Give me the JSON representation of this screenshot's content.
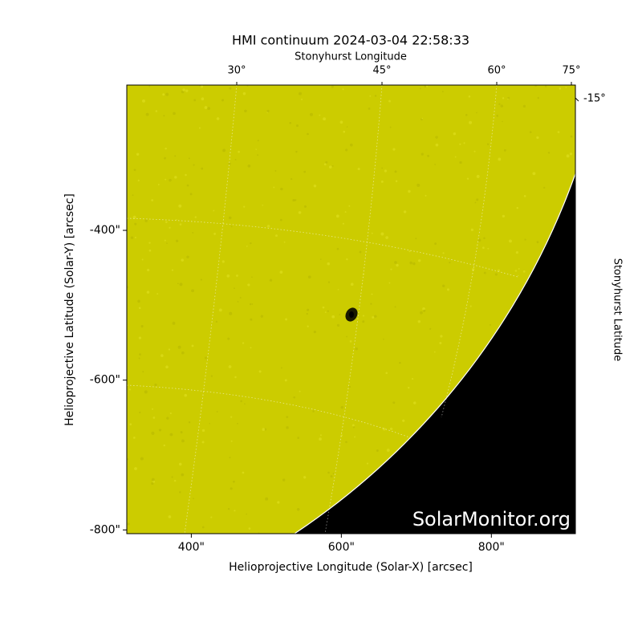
{
  "chart_data": {
    "type": "image",
    "title": "HMI continuum 2024-03-04 22:58:33",
    "xlabel": "Helioprojective Longitude (Solar-X) [arcsec]",
    "ylabel": "Helioprojective Latitude (Solar-Y) [arcsec]",
    "top_axis_label": "Stonyhurst Longitude",
    "right_axis_label": "Stonyhurst Latitude",
    "top_ticks": [
      "30°",
      "45°",
      "60°",
      "75°"
    ],
    "right_ticks": [
      "-15°"
    ],
    "watermark": "SolarMonitor.org",
    "xlim": [
      314,
      912
    ],
    "ylim": [
      -805,
      -206
    ],
    "xticks": [
      {
        "value": 400,
        "label": "400\""
      },
      {
        "value": 600,
        "label": "600\""
      },
      {
        "value": 800,
        "label": "800\""
      }
    ],
    "yticks": [
      {
        "value": -400,
        "label": "-400\""
      },
      {
        "value": -600,
        "label": "-600\""
      },
      {
        "value": -800,
        "label": "-800\""
      }
    ],
    "color": "#cccc00"
  }
}
